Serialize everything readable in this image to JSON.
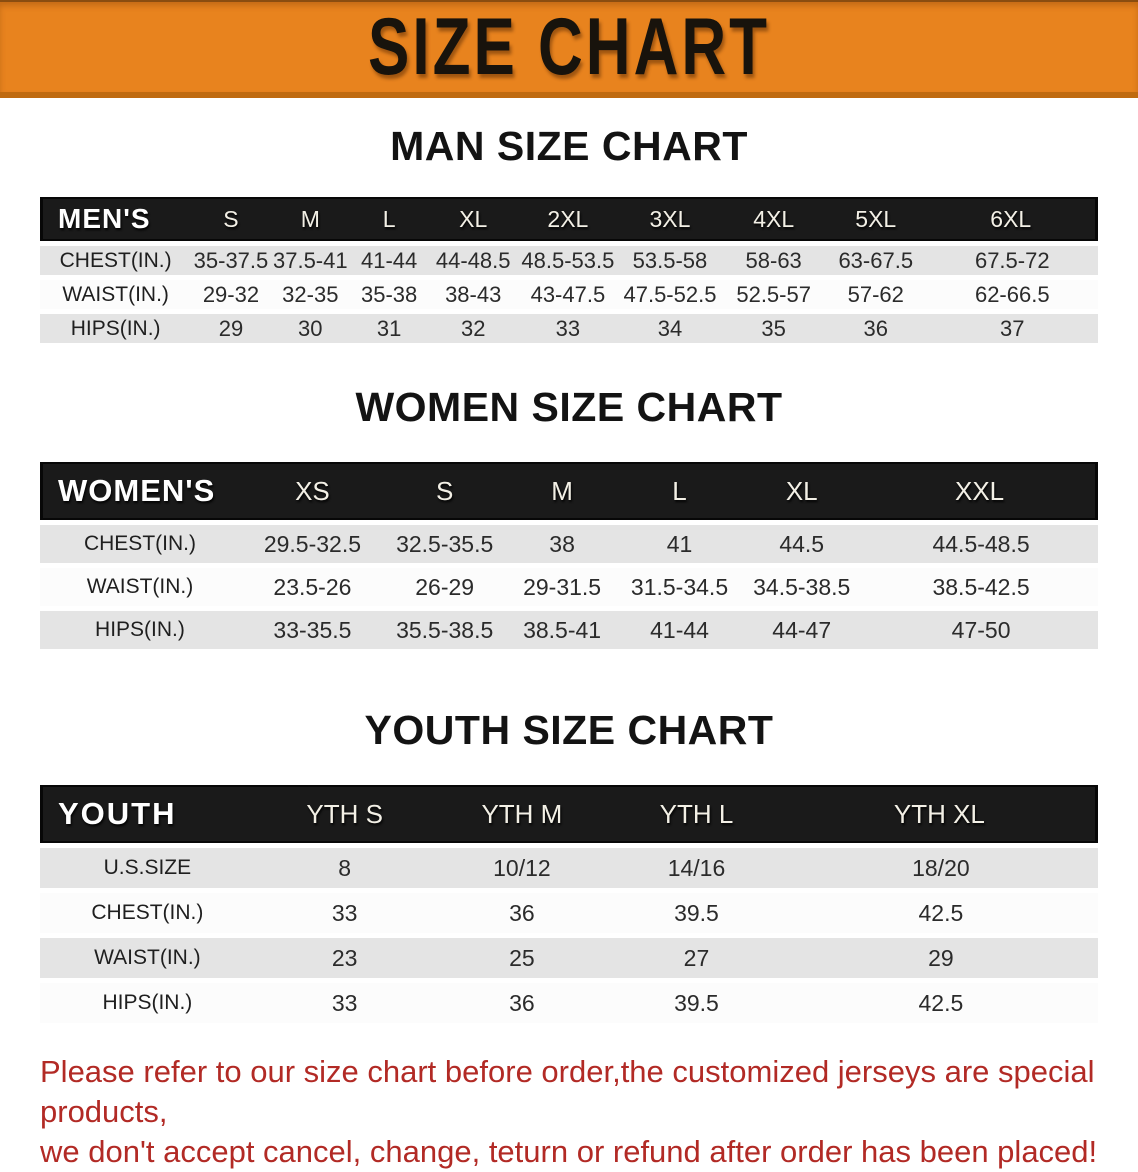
{
  "banner": {
    "title": "SIZE CHART",
    "bg_color": "#E8831E",
    "edge_color": "#BF6A10",
    "text_color": "#18130c"
  },
  "sections": [
    {
      "id": "men",
      "heading": "MAN SIZE CHART",
      "corner_label": "MEN'S",
      "columns": [
        "S",
        "M",
        "L",
        "XL",
        "2XL",
        "3XL",
        "4XL",
        "5XL",
        "6XL"
      ],
      "rows": [
        {
          "label": "CHEST(IN.)",
          "values": [
            "35-37.5",
            "37.5-41",
            "41-44",
            "44-48.5",
            "48.5-53.5",
            "53.5-58",
            "58-63",
            "63-67.5",
            "67.5-72"
          ]
        },
        {
          "label": "WAIST(IN.)",
          "values": [
            "29-32",
            "32-35",
            "35-38",
            "38-43",
            "43-47.5",
            "47.5-52.5",
            "52.5-57",
            "57-62",
            "62-66.5"
          ]
        },
        {
          "label": "HIPS(IN.)",
          "values": [
            "29",
            "30",
            "31",
            "32",
            "33",
            "34",
            "35",
            "36",
            "37"
          ]
        }
      ]
    },
    {
      "id": "women",
      "heading": "WOMEN SIZE CHART",
      "corner_label": "WOMEN'S",
      "columns": [
        "XS",
        "S",
        "M",
        "L",
        "XL",
        "XXL"
      ],
      "rows": [
        {
          "label": "CHEST(IN.)",
          "values": [
            "29.5-32.5",
            "32.5-35.5",
            "38",
            "41",
            "44.5",
            "44.5-48.5"
          ]
        },
        {
          "label": "WAIST(IN.)",
          "values": [
            "23.5-26",
            "26-29",
            "29-31.5",
            "31.5-34.5",
            "34.5-38.5",
            "38.5-42.5"
          ]
        },
        {
          "label": "HIPS(IN.)",
          "values": [
            "33-35.5",
            "35.5-38.5",
            "38.5-41",
            "41-44",
            "44-47",
            "47-50"
          ]
        }
      ]
    },
    {
      "id": "youth",
      "heading": "YOUTH SIZE CHART",
      "corner_label": "YOUTH",
      "columns": [
        "YTH S",
        "YTH M",
        "YTH L",
        "YTH XL"
      ],
      "rows": [
        {
          "label": "U.S.SIZE",
          "values": [
            "8",
            "10/12",
            "14/16",
            "18/20"
          ]
        },
        {
          "label": "CHEST(IN.)",
          "values": [
            "33",
            "36",
            "39.5",
            "42.5"
          ]
        },
        {
          "label": "WAIST(IN.)",
          "values": [
            "23",
            "25",
            "27",
            "29"
          ]
        },
        {
          "label": "HIPS(IN.)",
          "values": [
            "33",
            "36",
            "39.5",
            "42.5"
          ]
        }
      ]
    }
  ],
  "footer": {
    "line1": "Please refer to our size chart before order,the customized jerseys are special products,",
    "line2": "we don't accept cancel, change, teturn or refund after order has been placed!",
    "text_color": "#B22A25"
  }
}
